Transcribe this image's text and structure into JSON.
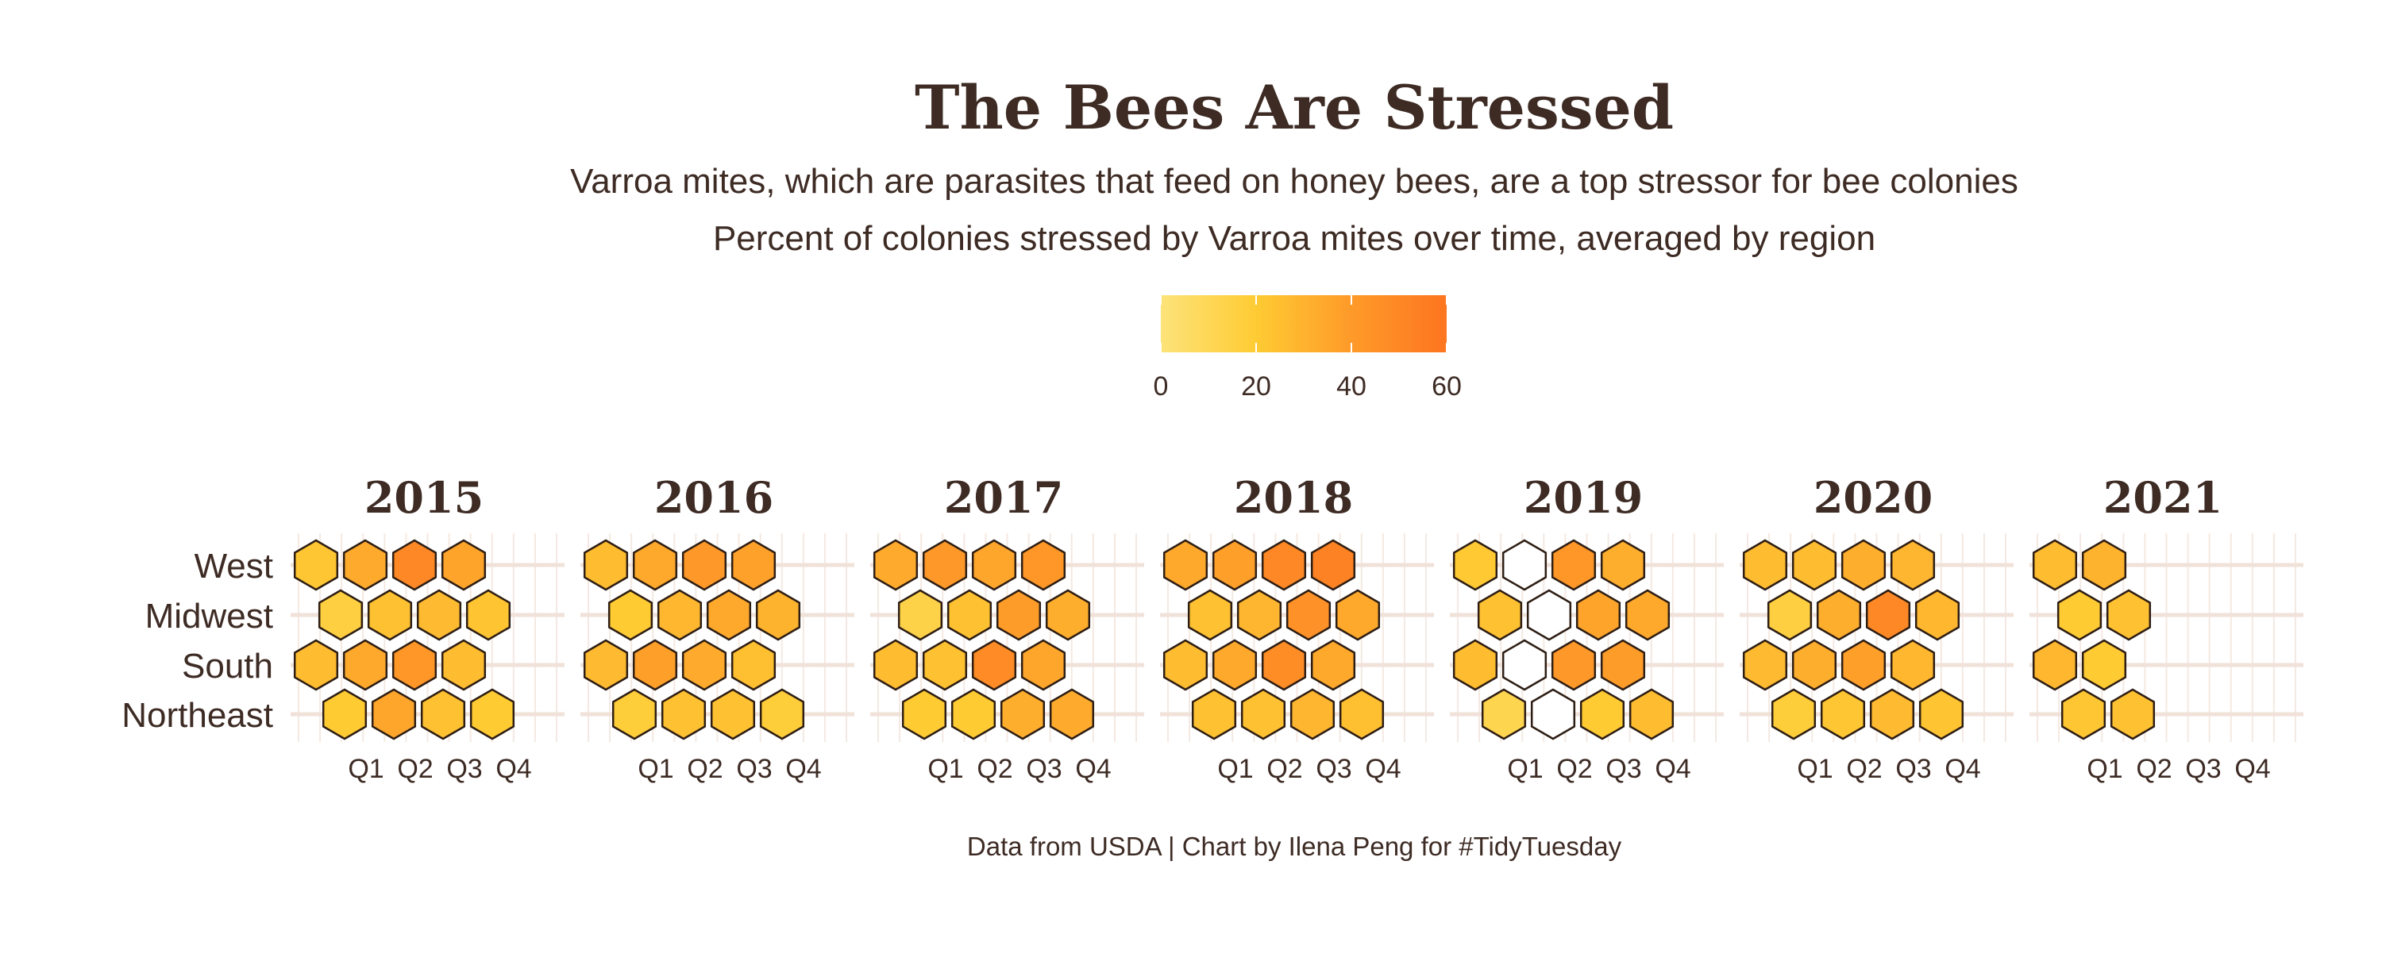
{
  "chart_data": {
    "type": "heatmap",
    "title": "The Bees Are Stressed",
    "subtitle_lines": [
      "Varroa mites, which are parasites that feed on honey bees, are a top stressor for bee colonies",
      "Percent of colonies stressed by Varroa mites over time, averaged by region"
    ],
    "caption": "Data from USDA | Chart by Ilena Peng for #TidyTuesday",
    "legend": {
      "position": "top",
      "min": 0,
      "max": 60,
      "ticks": [
        "0",
        "20",
        "40",
        "60"
      ],
      "tick_values": [
        0,
        20,
        40,
        60
      ],
      "colors": [
        "#fde37a",
        "#fecb33",
        "#fe9a29",
        "#fd7520"
      ]
    },
    "regions": [
      "West",
      "Midwest",
      "South",
      "Northeast"
    ],
    "quarters": [
      "Q1",
      "Q2",
      "Q3",
      "Q4"
    ],
    "panels": [
      {
        "year": "2015",
        "values": [
          [
            22,
            33,
            50,
            36
          ],
          [
            16,
            24,
            27,
            23
          ],
          [
            26,
            34,
            42,
            26
          ],
          [
            20,
            35,
            24,
            20
          ]
        ]
      },
      {
        "year": "2016",
        "values": [
          [
            26,
            34,
            41,
            37
          ],
          [
            20,
            28,
            34,
            30
          ],
          [
            27,
            38,
            33,
            25
          ],
          [
            18,
            24,
            24,
            18
          ]
        ]
      },
      {
        "year": "2017",
        "values": [
          [
            33,
            41,
            35,
            42
          ],
          [
            14,
            24,
            39,
            32
          ],
          [
            26,
            24,
            48,
            35
          ],
          [
            20,
            20,
            32,
            33
          ]
        ]
      },
      {
        "year": "2018",
        "values": [
          [
            34,
            38,
            50,
            53
          ],
          [
            24,
            29,
            45,
            34
          ],
          [
            26,
            34,
            47,
            34
          ],
          [
            24,
            24,
            29,
            25
          ]
        ]
      },
      {
        "year": "2019",
        "values": [
          [
            21,
            null,
            42,
            32
          ],
          [
            24,
            null,
            36,
            34
          ],
          [
            26,
            null,
            41,
            39
          ],
          [
            12,
            null,
            20,
            26
          ]
        ]
      },
      {
        "year": "2020",
        "values": [
          [
            26,
            26,
            32,
            29
          ],
          [
            16,
            32,
            50,
            28
          ],
          [
            27,
            32,
            38,
            28
          ],
          [
            18,
            22,
            27,
            23
          ]
        ]
      },
      {
        "year": "2021",
        "values": [
          [
            26,
            30,
            null,
            null
          ],
          [
            20,
            24,
            null,
            null
          ],
          [
            28,
            20,
            null,
            null
          ],
          [
            22,
            24,
            null,
            null
          ]
        ]
      }
    ]
  }
}
